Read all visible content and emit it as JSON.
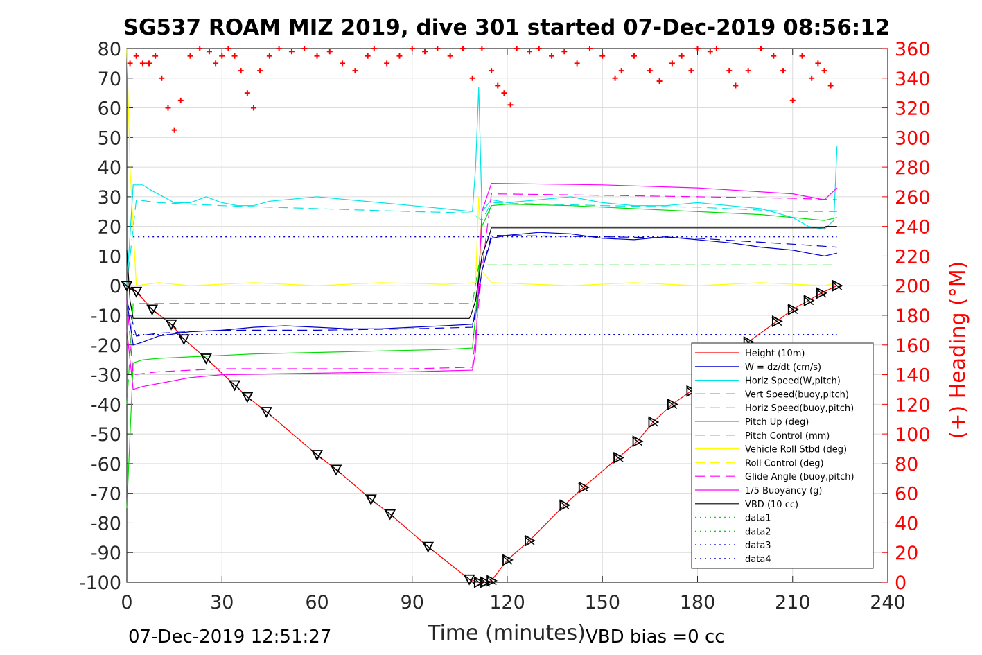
{
  "chart_data": {
    "type": "line",
    "title": "SG537 ROAM MIZ 2019, dive 301 started 07-Dec-2019 08:56:12",
    "xlabel": "Time (minutes)",
    "ylabel_right": "(+) Heading (°M)",
    "xlim": [
      0,
      240
    ],
    "ylim": [
      -100,
      80
    ],
    "ylim_right": [
      0,
      360
    ],
    "xticks": [
      "0",
      "30",
      "60",
      "90",
      "120",
      "150",
      "180",
      "210",
      "240"
    ],
    "yticks": [
      "80",
      "70",
      "60",
      "50",
      "40",
      "30",
      "20",
      "10",
      "0",
      "-10",
      "-20",
      "-30",
      "-40",
      "-50",
      "-60",
      "-70",
      "-80",
      "-90",
      "-100"
    ],
    "yticks_right": [
      "360",
      "340",
      "320",
      "300",
      "280",
      "260",
      "240",
      "220",
      "200",
      "180",
      "160",
      "140",
      "120",
      "100",
      "80",
      "60",
      "40",
      "20",
      "0"
    ],
    "grid": true,
    "legend_position": "lower-right",
    "footer_left": "07-Dec-2019 12:51:27",
    "footer_right": "VBD bias =0 cc",
    "series": [
      {
        "name": "Height (10m)",
        "color": "#ff0000",
        "style": "solid",
        "x": [
          0,
          3,
          8,
          14,
          18,
          25,
          34,
          38,
          44,
          60,
          66,
          77,
          83,
          95,
          108,
          111,
          113,
          115,
          120,
          127,
          138,
          144,
          155,
          161,
          166,
          172,
          178,
          196,
          205,
          210,
          215,
          219,
          224
        ],
        "y": [
          0,
          -2,
          -8,
          -13,
          -18,
          -24.5,
          -33.5,
          -37.5,
          -42.5,
          -57,
          -62,
          -72,
          -77,
          -88,
          -99,
          -100,
          -100,
          -99.5,
          -92.5,
          -86,
          -74,
          -68,
          -58,
          -52.5,
          -46,
          -40,
          -35.5,
          -19,
          -12,
          -8,
          -5,
          -2.5,
          0
        ]
      },
      {
        "name": "W = dz/dt (cm/s)",
        "color": "#0000cd",
        "style": "solid",
        "x": [
          0,
          2,
          5,
          10,
          20,
          30,
          40,
          50,
          60,
          70,
          80,
          90,
          100,
          109,
          110,
          112,
          115,
          120,
          130,
          140,
          150,
          160,
          170,
          180,
          190,
          200,
          210,
          215,
          220,
          224
        ],
        "y": [
          -5,
          -20,
          -19,
          -17,
          -15.5,
          -15,
          -14,
          -13.5,
          -14,
          -14.5,
          -14.5,
          -14,
          -13.5,
          -13,
          -10,
          5,
          16,
          17,
          18,
          17.5,
          16,
          15.5,
          16.5,
          15.5,
          14.5,
          13,
          12,
          11,
          10,
          11
        ]
      },
      {
        "name": "Horiz Speed(W,pitch)",
        "color": "#00e5e5",
        "style": "solid",
        "x": [
          0,
          2,
          5,
          8,
          15,
          20,
          25,
          30,
          35,
          40,
          45,
          50,
          60,
          70,
          80,
          90,
          100,
          109,
          110,
          111,
          112,
          115,
          120,
          130,
          140,
          150,
          160,
          170,
          180,
          190,
          200,
          210,
          215,
          220,
          223,
          224
        ],
        "y": [
          0,
          34,
          34,
          32,
          28,
          28,
          30,
          28,
          27,
          27,
          28.5,
          29,
          30,
          29,
          28,
          27,
          26,
          25,
          40,
          67,
          25,
          29,
          28,
          29,
          30,
          28,
          27,
          27,
          28,
          27,
          26,
          23,
          20,
          19,
          22,
          47
        ]
      },
      {
        "name": "Vert Speed(buoy,pitch)",
        "color": "#0000cd",
        "style": "dashed",
        "x": [
          0,
          3,
          10,
          30,
          60,
          90,
          109,
          112,
          115,
          150,
          180,
          210,
          224
        ],
        "y": [
          -5,
          -17,
          -16,
          -15,
          -15,
          -14.5,
          -14,
          5,
          17,
          16.5,
          16,
          14,
          13
        ]
      },
      {
        "name": "Horiz Speed(buoy,pitch)",
        "color": "#00e5e5",
        "style": "dashed",
        "x": [
          0,
          3,
          10,
          30,
          60,
          90,
          109,
          112,
          115,
          150,
          180,
          210,
          224
        ],
        "y": [
          0,
          29,
          28,
          27,
          26,
          25,
          24.5,
          22,
          28,
          27,
          26.5,
          25,
          25
        ]
      },
      {
        "name": "Pitch Up (deg)",
        "color": "#00dd00",
        "style": "solid",
        "x": [
          0,
          2,
          5,
          10,
          20,
          30,
          40,
          60,
          80,
          100,
          109,
          110,
          112,
          115,
          120,
          140,
          160,
          180,
          200,
          210,
          220,
          224
        ],
        "y": [
          -75,
          -26,
          -25,
          -24.5,
          -24,
          -23.5,
          -23,
          -22.5,
          -22,
          -21.5,
          -21,
          -10,
          20,
          27,
          27.5,
          27,
          26,
          25,
          24,
          23,
          22,
          23
        ]
      },
      {
        "name": "Pitch Control (mm)",
        "color": "#00dd00",
        "style": "dashed",
        "x": [
          0,
          2,
          109,
          111,
          224
        ],
        "y": [
          -40,
          -6,
          -6,
          7,
          7
        ]
      },
      {
        "name": "Vehicle Roll Stbd (deg)",
        "color": "#ffff00",
        "style": "solid",
        "x": [
          0,
          1,
          3,
          10,
          20,
          40,
          60,
          80,
          100,
          110,
          111,
          112,
          115,
          140,
          160,
          180,
          200,
          220,
          224
        ],
        "y": [
          80,
          40,
          0,
          1,
          0,
          1,
          0,
          1,
          0.5,
          1,
          30,
          5,
          1,
          0,
          1,
          0,
          1,
          0,
          1
        ]
      },
      {
        "name": "Roll Control (deg)",
        "color": "#ffff00",
        "style": "dashed",
        "x": [
          0,
          224
        ],
        "y": [
          0,
          0
        ]
      },
      {
        "name": "Glide Angle (buoy,pitch)",
        "color": "#ff00ff",
        "style": "dashed",
        "x": [
          0,
          2,
          10,
          30,
          60,
          90,
          109,
          112,
          115,
          150,
          180,
          210,
          224
        ],
        "y": [
          -5,
          -30,
          -29,
          -28,
          -28,
          -28,
          -27.5,
          5,
          31,
          30.5,
          30,
          29.5,
          29
        ]
      },
      {
        "name": "1/5 Buoyancy (g)",
        "color": "#ff00ff",
        "style": "solid",
        "x": [
          0,
          2,
          5,
          10,
          20,
          30,
          60,
          90,
          109,
          110,
          112,
          115,
          150,
          180,
          210,
          215,
          220,
          224
        ],
        "y": [
          -15,
          -35,
          -34,
          -33,
          -31,
          -30,
          -29.5,
          -29,
          -28.5,
          -22,
          25,
          34.5,
          34,
          33,
          31,
          30,
          29,
          33
        ]
      },
      {
        "name": "VBD (10 cc)",
        "color": "#000000",
        "style": "solid",
        "x": [
          0,
          1,
          2,
          108,
          108.5,
          110,
          112,
          114,
          115,
          220,
          220.5,
          224
        ],
        "y": [
          12,
          -5,
          -11,
          -11,
          -10,
          -5,
          10,
          16,
          19.5,
          19.5,
          20,
          20
        ]
      },
      {
        "name": "data1",
        "color": "#00dd00",
        "style": "dotted",
        "x": [],
        "y": []
      },
      {
        "name": "data2",
        "color": "#00dd00",
        "style": "dotted",
        "x": [],
        "y": []
      },
      {
        "name": "data3",
        "color": "#0000cd",
        "style": "dotted",
        "x": [
          2,
          224
        ],
        "y": [
          16.5,
          16.5
        ]
      },
      {
        "name": "data4",
        "color": "#0000cd",
        "style": "dotted",
        "x": [
          2,
          224
        ],
        "y": [
          -16.5,
          -16.5
        ]
      }
    ],
    "heading_series": {
      "axis": "right",
      "color": "#ff0000",
      "marker": "+",
      "x": [
        1,
        3,
        5,
        7,
        9,
        11,
        13,
        15,
        17,
        20,
        23,
        26,
        28,
        30,
        32,
        34,
        36,
        38,
        40,
        42,
        45,
        48,
        52,
        56,
        60,
        64,
        68,
        72,
        76,
        78,
        82,
        86,
        90,
        94,
        98,
        102,
        106,
        109,
        112,
        115,
        117,
        119,
        121,
        123,
        127,
        130,
        134,
        138,
        142,
        146,
        150,
        154,
        156,
        160,
        165,
        168,
        172,
        175,
        178,
        180,
        184,
        186,
        190,
        192,
        196,
        200,
        204,
        207,
        210,
        213,
        216,
        218,
        220,
        222
      ],
      "y": [
        350,
        355,
        350,
        350,
        355,
        340,
        320,
        305,
        325,
        355,
        360,
        358,
        350,
        355,
        360,
        355,
        345,
        330,
        320,
        345,
        355,
        360,
        358,
        360,
        355,
        358,
        350,
        345,
        355,
        360,
        350,
        355,
        360,
        358,
        360,
        355,
        360,
        340,
        360,
        345,
        335,
        330,
        322,
        360,
        358,
        360,
        355,
        358,
        350,
        360,
        355,
        340,
        345,
        355,
        345,
        338,
        350,
        355,
        345,
        360,
        358,
        360,
        345,
        335,
        345,
        360,
        355,
        345,
        325,
        355,
        340,
        350,
        345,
        335
      ]
    }
  }
}
